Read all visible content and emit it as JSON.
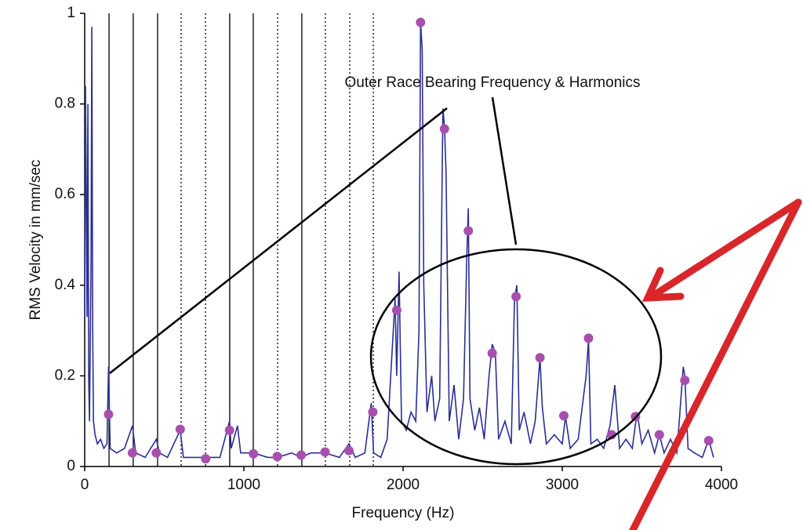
{
  "chart_data": {
    "type": "line",
    "xlabel": "Frequency (Hz)",
    "ylabel": "RMS Velocity in mm/sec",
    "annotation": "Outer Race Bearing Frequency & Harmonics",
    "xlim": [
      0,
      4000
    ],
    "xticks": [
      0,
      1000,
      2000,
      3000,
      4000
    ],
    "ylim": [
      0,
      1
    ],
    "yticks": [
      0,
      0.2,
      0.4,
      0.6,
      0.8,
      1
    ],
    "harmonic_lines": [
      {
        "x": 153,
        "dotted": false
      },
      {
        "x": 305,
        "dotted": false
      },
      {
        "x": 458,
        "dotted": false
      },
      {
        "x": 606,
        "dotted": true
      },
      {
        "x": 759,
        "dotted": true
      },
      {
        "x": 911,
        "dotted": false
      },
      {
        "x": 1059,
        "dotted": false
      },
      {
        "x": 1212,
        "dotted": true
      },
      {
        "x": 1364,
        "dotted": false
      },
      {
        "x": 1512,
        "dotted": true
      },
      {
        "x": 1665,
        "dotted": true
      },
      {
        "x": 1813,
        "dotted": true
      }
    ],
    "series": [
      {
        "color": "#2b2f94",
        "x": [
          0,
          5,
          10,
          15,
          20,
          25,
          30,
          40,
          45,
          50,
          55,
          65,
          80,
          100,
          120,
          140,
          150,
          160,
          200,
          250,
          300,
          320,
          380,
          450,
          470,
          520,
          600,
          620,
          700,
          760,
          850,
          910,
          920,
          960,
          980,
          1060,
          1150,
          1210,
          1300,
          1360,
          1420,
          1510,
          1600,
          1660,
          1700,
          1760,
          1800,
          1815,
          1860,
          1900,
          1950,
          1960,
          1975,
          1990,
          2020,
          2050,
          2080,
          2100,
          2110,
          2120,
          2130,
          2150,
          2180,
          2200,
          2230,
          2250,
          2260,
          2270,
          2290,
          2320,
          2350,
          2380,
          2400,
          2410,
          2420,
          2450,
          2480,
          2510,
          2540,
          2560,
          2580,
          2600,
          2640,
          2680,
          2700,
          2715,
          2730,
          2760,
          2800,
          2830,
          2860,
          2875,
          2900,
          2950,
          3000,
          3020,
          3050,
          3100,
          3150,
          3165,
          3180,
          3220,
          3260,
          3300,
          3330,
          3360,
          3400,
          3440,
          3470,
          3500,
          3540,
          3580,
          3610,
          3640,
          3680,
          3720,
          3760,
          3770,
          3790,
          3830,
          3880,
          3920,
          3950
        ],
        "values": [
          0.33,
          0.84,
          0.6,
          0.33,
          0.8,
          0.2,
          0.1,
          0.45,
          0.97,
          0.3,
          0.1,
          0.07,
          0.05,
          0.06,
          0.04,
          0.05,
          0.22,
          0.04,
          0.03,
          0.04,
          0.09,
          0.03,
          0.02,
          0.06,
          0.03,
          0.02,
          0.08,
          0.02,
          0.02,
          0.02,
          0.02,
          0.1,
          0.04,
          0.09,
          0.03,
          0.03,
          0.02,
          0.02,
          0.03,
          0.02,
          0.03,
          0.03,
          0.02,
          0.05,
          0.02,
          0.03,
          0.14,
          0.03,
          0.02,
          0.06,
          0.37,
          0.2,
          0.43,
          0.1,
          0.08,
          0.12,
          0.1,
          0.3,
          0.98,
          0.92,
          0.4,
          0.12,
          0.2,
          0.1,
          0.15,
          0.79,
          0.75,
          0.65,
          0.1,
          0.18,
          0.06,
          0.15,
          0.46,
          0.57,
          0.15,
          0.08,
          0.13,
          0.06,
          0.2,
          0.27,
          0.25,
          0.06,
          0.1,
          0.05,
          0.37,
          0.4,
          0.08,
          0.12,
          0.05,
          0.1,
          0.24,
          0.13,
          0.05,
          0.07,
          0.05,
          0.11,
          0.04,
          0.06,
          0.2,
          0.28,
          0.05,
          0.06,
          0.04,
          0.09,
          0.18,
          0.04,
          0.06,
          0.04,
          0.12,
          0.05,
          0.08,
          0.03,
          0.07,
          0.03,
          0.06,
          0.03,
          0.22,
          0.2,
          0.04,
          0.03,
          0.02,
          0.06,
          0.02
        ]
      },
      {
        "color": "#a84fae",
        "x": [
          150,
          300,
          450,
          600,
          760,
          910,
          1060,
          1210,
          1360,
          1510,
          1660,
          1810,
          1960,
          2110,
          2260,
          2410,
          2560,
          2710,
          2860,
          3010,
          3165,
          3310,
          3460,
          3610,
          3770,
          3920
        ],
        "values": [
          0.115,
          0.03,
          0.03,
          0.082,
          0.017,
          0.08,
          0.028,
          0.022,
          0.025,
          0.032,
          0.035,
          0.12,
          0.345,
          0.98,
          0.745,
          0.52,
          0.25,
          0.375,
          0.24,
          0.112,
          0.283,
          0.07,
          0.11,
          0.07,
          0.19,
          0.057
        ]
      }
    ]
  }
}
